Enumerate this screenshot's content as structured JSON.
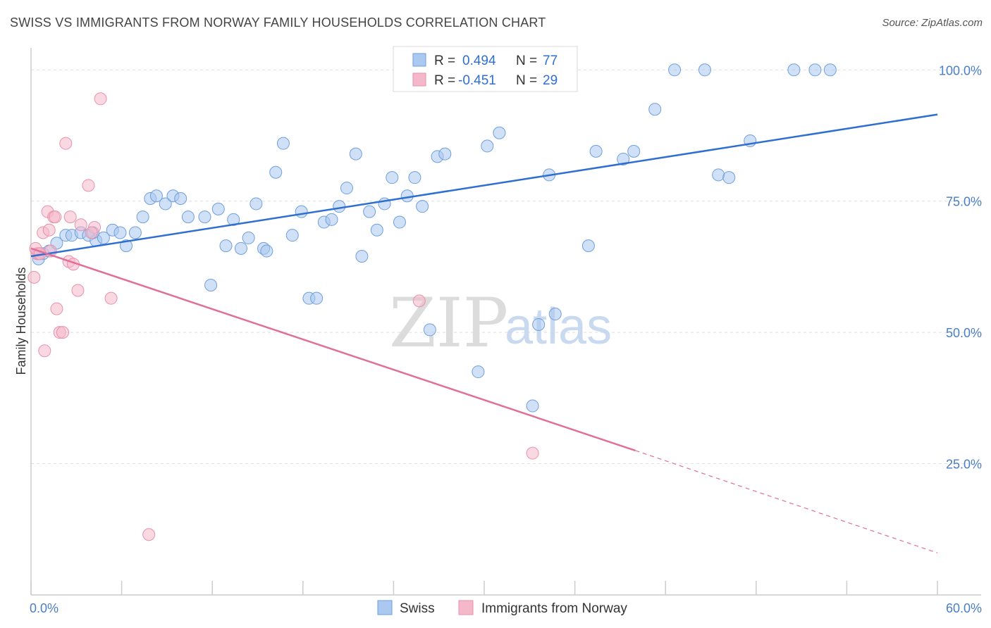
{
  "header": {
    "title": "SWISS VS IMMIGRANTS FROM NORWAY FAMILY HOUSEHOLDS CORRELATION CHART",
    "source": "Source: ZipAtlas.com"
  },
  "watermark": {
    "zip": "ZIP",
    "atlas": "atlas"
  },
  "legend_stats": [
    {
      "r_label": "R =",
      "r_value": "0.494",
      "n_label": "N =",
      "n_value": "77",
      "color": "#aac8f0"
    },
    {
      "r_label": "R =",
      "r_value": "-0.451",
      "n_label": "N =",
      "n_value": "29",
      "color": "#f5b8cb"
    }
  ],
  "chart_data": {
    "type": "scatter",
    "title": "SWISS VS IMMIGRANTS FROM NORWAY FAMILY HOUSEHOLDS CORRELATION CHART",
    "xlabel": "",
    "ylabel": "Family Households",
    "xlim": [
      0,
      60
    ],
    "ylim": [
      0,
      105
    ],
    "x_tick_labels": [
      "0.0%",
      "60.0%"
    ],
    "y_tick_labels": [
      "25.0%",
      "50.0%",
      "75.0%",
      "100.0%"
    ],
    "y_ticks": [
      25,
      50,
      75,
      100
    ],
    "grid": true,
    "legend_position": "bottom",
    "series": [
      {
        "name": "Swiss",
        "color": "#aac8f0",
        "stroke": "#6f9fdc",
        "trend": {
          "x0": 0,
          "y0": 64.5,
          "x1": 60,
          "y1": 91.5,
          "color": "#2f6fd1"
        },
        "points": [
          [
            0.5,
            64
          ],
          [
            0.8,
            65
          ],
          [
            1.2,
            65.5
          ],
          [
            1.7,
            67
          ],
          [
            2.3,
            68.5
          ],
          [
            2.7,
            68.5
          ],
          [
            3.3,
            69
          ],
          [
            3.8,
            68.5
          ],
          [
            4.3,
            67.5
          ],
          [
            4.8,
            68
          ],
          [
            5.4,
            69.5
          ],
          [
            5.9,
            69
          ],
          [
            6.3,
            66.5
          ],
          [
            6.9,
            69
          ],
          [
            7.4,
            72
          ],
          [
            7.9,
            75.5
          ],
          [
            8.3,
            76
          ],
          [
            8.9,
            74.5
          ],
          [
            9.4,
            76
          ],
          [
            9.9,
            75.5
          ],
          [
            10.4,
            72
          ],
          [
            11.5,
            72
          ],
          [
            11.9,
            59
          ],
          [
            12.4,
            73.5
          ],
          [
            12.9,
            66.5
          ],
          [
            13.4,
            71.5
          ],
          [
            13.9,
            66
          ],
          [
            14.4,
            68
          ],
          [
            14.9,
            74.5
          ],
          [
            15.4,
            66
          ],
          [
            15.6,
            65.5
          ],
          [
            16.2,
            80.5
          ],
          [
            16.7,
            86
          ],
          [
            17.3,
            68.5
          ],
          [
            17.9,
            73
          ],
          [
            18.4,
            56.5
          ],
          [
            18.9,
            56.5
          ],
          [
            19.4,
            71
          ],
          [
            19.9,
            71.5
          ],
          [
            20.4,
            74
          ],
          [
            20.9,
            77.5
          ],
          [
            21.5,
            84
          ],
          [
            21.9,
            64.5
          ],
          [
            22.4,
            73
          ],
          [
            22.9,
            69.5
          ],
          [
            23.4,
            74.5
          ],
          [
            23.9,
            79.5
          ],
          [
            24.4,
            71
          ],
          [
            24.9,
            76
          ],
          [
            25.4,
            79.5
          ],
          [
            25.9,
            74
          ],
          [
            26.4,
            50.5
          ],
          [
            26.9,
            83.5
          ],
          [
            27.4,
            84
          ],
          [
            29.6,
            42.5
          ],
          [
            30.2,
            85.5
          ],
          [
            31.0,
            88
          ],
          [
            32.3,
            100
          ],
          [
            33.6,
            51.5
          ],
          [
            34.3,
            80
          ],
          [
            34.7,
            53.5
          ],
          [
            33.2,
            36
          ],
          [
            35.4,
            100
          ],
          [
            36.9,
            66.5
          ],
          [
            37.4,
            84.5
          ],
          [
            39.2,
            83
          ],
          [
            39.9,
            84.5
          ],
          [
            41.3,
            92.5
          ],
          [
            42.6,
            100
          ],
          [
            44.6,
            100
          ],
          [
            45.5,
            80
          ],
          [
            46.2,
            79.5
          ],
          [
            47.6,
            86.5
          ],
          [
            50.5,
            100
          ],
          [
            51.9,
            100
          ],
          [
            52.9,
            100
          ],
          [
            4.1,
            69
          ]
        ]
      },
      {
        "name": "Immigrants from Norway",
        "color": "#f5b8cb",
        "stroke": "#e692ad",
        "trend": {
          "x0": 0,
          "y0": 66,
          "x1": 40,
          "y1": 27.5,
          "dash_x1": 60,
          "dash_y1": 8,
          "color": "#e06f99"
        },
        "points": [
          [
            0.2,
            60.5
          ],
          [
            0.4,
            65
          ],
          [
            0.5,
            65
          ],
          [
            0.8,
            69
          ],
          [
            0.9,
            46.5
          ],
          [
            1.1,
            73
          ],
          [
            1.2,
            69.5
          ],
          [
            1.5,
            72
          ],
          [
            1.6,
            72
          ],
          [
            1.7,
            54.5
          ],
          [
            1.9,
            50
          ],
          [
            2.1,
            50
          ],
          [
            2.3,
            86
          ],
          [
            2.5,
            63.5
          ],
          [
            2.6,
            72
          ],
          [
            2.8,
            63
          ],
          [
            3.1,
            58
          ],
          [
            3.3,
            70.5
          ],
          [
            3.8,
            78
          ],
          [
            4.2,
            70
          ],
          [
            4.6,
            94.5
          ],
          [
            5.3,
            56.5
          ],
          [
            7.8,
            11.5
          ],
          [
            25.7,
            56
          ],
          [
            33.2,
            27
          ],
          [
            0.3,
            66
          ],
          [
            1.3,
            65.5
          ],
          [
            4.0,
            69
          ],
          [
            0.6,
            65
          ]
        ]
      }
    ]
  },
  "bottom_legend": [
    {
      "label": "Swiss",
      "color": "#aac8f0"
    },
    {
      "label": "Immigrants from Norway",
      "color": "#f5b8cb"
    }
  ]
}
